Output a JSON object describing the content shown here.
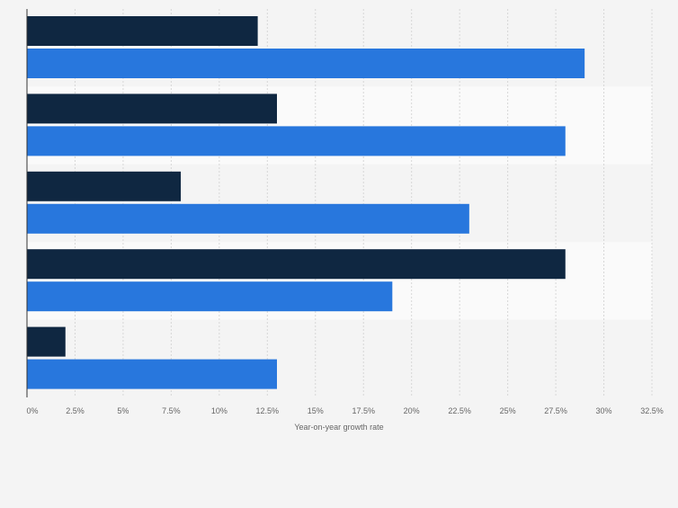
{
  "chart_data": {
    "type": "bar",
    "orientation": "horizontal",
    "categories": [
      "",
      "",
      "",
      "",
      ""
    ],
    "series": [
      {
        "values": [
          12,
          13,
          8,
          28,
          2
        ]
      },
      {
        "values": [
          29,
          28,
          23,
          19,
          13
        ]
      }
    ],
    "xlim": [
      0,
      32.5
    ],
    "x_ticks": [
      0,
      2.5,
      5,
      7.5,
      10,
      12.5,
      15,
      17.5,
      20,
      22.5,
      25,
      27.5,
      30,
      32.5
    ],
    "x_tick_labels": [
      "0%",
      "2.5%",
      "5%",
      "7.5%",
      "10%",
      "12.5%",
      "15%",
      "17.5%",
      "20%",
      "22.5%",
      "25%",
      "27.5%",
      "30%",
      "32.5%"
    ],
    "xlabel": "Year-on-year growth rate",
    "ylabel": "",
    "title": "",
    "grid": true,
    "legend": "none",
    "colors": {
      "series_0": "#0f2741",
      "series_1": "#2877dd",
      "band_light": "#fafafa",
      "band_dark": "#f4f4f4",
      "grid": "#d7d7d7",
      "axis": "#333333",
      "text": "#666666"
    }
  }
}
